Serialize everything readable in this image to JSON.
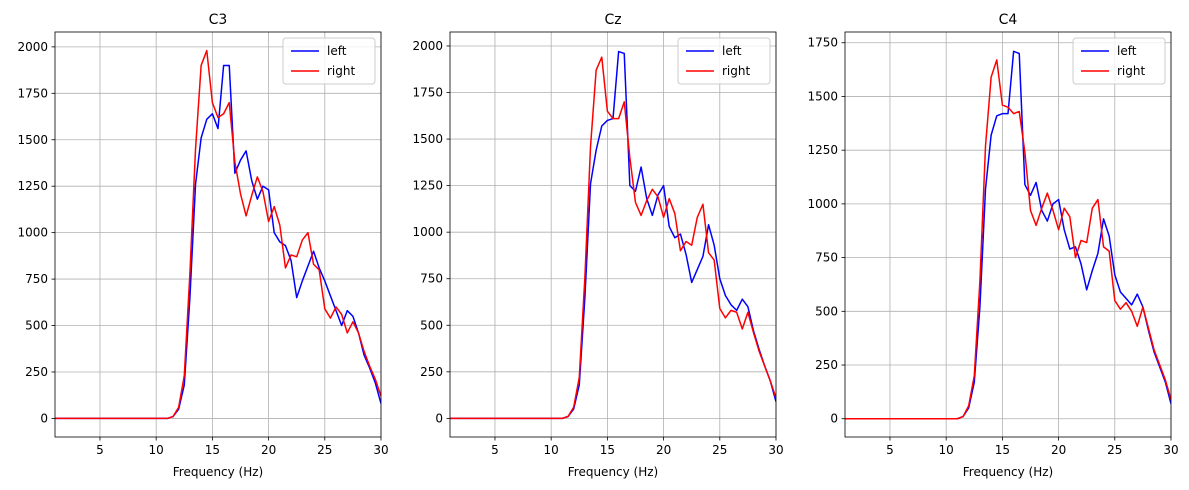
{
  "chart_data": [
    {
      "type": "line",
      "title": "C3",
      "xlabel": "Frequency (Hz)",
      "ylabel": "",
      "xlim": [
        1,
        30
      ],
      "ylim": [
        -100,
        2080
      ],
      "xticks": [
        5,
        10,
        15,
        20,
        25,
        30
      ],
      "yticks": [
        0,
        250,
        500,
        750,
        1000,
        1250,
        1500,
        1750,
        2000
      ],
      "grid": true,
      "legend": "top-right",
      "x": [
        1,
        1.5,
        2,
        2.5,
        3,
        3.5,
        4,
        4.5,
        5,
        5.5,
        6,
        6.5,
        7,
        7.5,
        8,
        8.5,
        9,
        9.5,
        10,
        10.5,
        11,
        11.5,
        12,
        12.5,
        13,
        13.5,
        14,
        14.5,
        15,
        15.5,
        16,
        16.5,
        17,
        17.5,
        18,
        18.5,
        19,
        19.5,
        20,
        20.5,
        21,
        21.5,
        22,
        22.5,
        23,
        23.5,
        24,
        24.5,
        25,
        25.5,
        26,
        26.5,
        27,
        27.5,
        28,
        28.5,
        29,
        29.5,
        30
      ],
      "series": [
        {
          "name": "left",
          "color": "#0000ff",
          "values": [
            0,
            0,
            0,
            0,
            0,
            0,
            0,
            0,
            0,
            0,
            0,
            0,
            0,
            0,
            0,
            0,
            0,
            0,
            0,
            0,
            0,
            10,
            50,
            180,
            650,
            1260,
            1510,
            1610,
            1640,
            1560,
            1900,
            1900,
            1320,
            1390,
            1440,
            1280,
            1180,
            1250,
            1230,
            1000,
            950,
            930,
            850,
            650,
            740,
            820,
            900,
            810,
            740,
            660,
            580,
            500,
            580,
            550,
            460,
            340,
            270,
            190,
            80
          ]
        },
        {
          "name": "right",
          "color": "#ff0000",
          "values": [
            0,
            0,
            0,
            0,
            0,
            0,
            0,
            0,
            0,
            0,
            0,
            0,
            0,
            0,
            0,
            0,
            0,
            0,
            0,
            0,
            0,
            10,
            60,
            230,
            780,
            1450,
            1900,
            1980,
            1700,
            1620,
            1640,
            1700,
            1380,
            1210,
            1090,
            1200,
            1300,
            1220,
            1060,
            1140,
            1040,
            810,
            880,
            870,
            960,
            1000,
            830,
            800,
            590,
            540,
            600,
            560,
            460,
            520,
            460,
            360,
            280,
            210,
            120
          ]
        }
      ]
    },
    {
      "type": "line",
      "title": "Cz",
      "xlabel": "Frequency (Hz)",
      "ylabel": "",
      "xlim": [
        1,
        30
      ],
      "ylim": [
        -100,
        2075
      ],
      "xticks": [
        5,
        10,
        15,
        20,
        25,
        30
      ],
      "yticks": [
        0,
        250,
        500,
        750,
        1000,
        1250,
        1500,
        1750,
        2000
      ],
      "grid": true,
      "legend": "top-right",
      "x": [
        1,
        1.5,
        2,
        2.5,
        3,
        3.5,
        4,
        4.5,
        5,
        5.5,
        6,
        6.5,
        7,
        7.5,
        8,
        8.5,
        9,
        9.5,
        10,
        10.5,
        11,
        11.5,
        12,
        12.5,
        13,
        13.5,
        14,
        14.5,
        15,
        15.5,
        16,
        16.5,
        17,
        17.5,
        18,
        18.5,
        19,
        19.5,
        20,
        20.5,
        21,
        21.5,
        22,
        22.5,
        23,
        23.5,
        24,
        24.5,
        25,
        25.5,
        26,
        26.5,
        27,
        27.5,
        28,
        28.5,
        29,
        29.5,
        30
      ],
      "series": [
        {
          "name": "left",
          "color": "#0000ff",
          "values": [
            0,
            0,
            0,
            0,
            0,
            0,
            0,
            0,
            0,
            0,
            0,
            0,
            0,
            0,
            0,
            0,
            0,
            0,
            0,
            0,
            0,
            10,
            50,
            180,
            650,
            1260,
            1440,
            1570,
            1600,
            1610,
            1970,
            1960,
            1250,
            1220,
            1350,
            1180,
            1090,
            1200,
            1250,
            1030,
            970,
            990,
            880,
            730,
            800,
            870,
            1040,
            930,
            750,
            660,
            610,
            580,
            640,
            600,
            470,
            370,
            280,
            200,
            90
          ]
        },
        {
          "name": "right",
          "color": "#ff0000",
          "values": [
            0,
            0,
            0,
            0,
            0,
            0,
            0,
            0,
            0,
            0,
            0,
            0,
            0,
            0,
            0,
            0,
            0,
            0,
            0,
            0,
            0,
            10,
            60,
            220,
            760,
            1460,
            1870,
            1940,
            1650,
            1610,
            1610,
            1700,
            1400,
            1160,
            1090,
            1170,
            1230,
            1190,
            1080,
            1180,
            1100,
            900,
            950,
            930,
            1080,
            1150,
            890,
            850,
            590,
            540,
            580,
            570,
            480,
            570,
            460,
            360,
            280,
            200,
            110
          ]
        }
      ]
    },
    {
      "type": "line",
      "title": "C4",
      "xlabel": "Frequency (Hz)",
      "ylabel": "",
      "xlim": [
        1,
        30
      ],
      "ylim": [
        -85,
        1800
      ],
      "xticks": [
        5,
        10,
        15,
        20,
        25,
        30
      ],
      "yticks": [
        0,
        250,
        500,
        750,
        1000,
        1250,
        1500,
        1750
      ],
      "grid": true,
      "legend": "top-right",
      "x": [
        1,
        1.5,
        2,
        2.5,
        3,
        3.5,
        4,
        4.5,
        5,
        5.5,
        6,
        6.5,
        7,
        7.5,
        8,
        8.5,
        9,
        9.5,
        10,
        10.5,
        11,
        11.5,
        12,
        12.5,
        13,
        13.5,
        14,
        14.5,
        15,
        15.5,
        16,
        16.5,
        17,
        17.5,
        18,
        18.5,
        19,
        19.5,
        20,
        20.5,
        21,
        21.5,
        22,
        22.5,
        23,
        23.5,
        24,
        24.5,
        25,
        25.5,
        26,
        26.5,
        27,
        27.5,
        28,
        28.5,
        29,
        29.5,
        30
      ],
      "series": [
        {
          "name": "left",
          "color": "#0000ff",
          "values": [
            0,
            0,
            0,
            0,
            0,
            0,
            0,
            0,
            0,
            0,
            0,
            0,
            0,
            0,
            0,
            0,
            0,
            0,
            0,
            0,
            0,
            10,
            50,
            170,
            520,
            1070,
            1320,
            1410,
            1420,
            1420,
            1710,
            1700,
            1090,
            1040,
            1100,
            970,
            920,
            1000,
            1020,
            880,
            790,
            800,
            720,
            600,
            690,
            770,
            930,
            850,
            670,
            590,
            560,
            530,
            580,
            520,
            410,
            310,
            240,
            170,
            70
          ]
        },
        {
          "name": "right",
          "color": "#ff0000",
          "values": [
            0,
            0,
            0,
            0,
            0,
            0,
            0,
            0,
            0,
            0,
            0,
            0,
            0,
            0,
            0,
            0,
            0,
            0,
            0,
            0,
            0,
            10,
            60,
            200,
            640,
            1270,
            1590,
            1670,
            1460,
            1450,
            1420,
            1430,
            1240,
            970,
            900,
            980,
            1050,
            970,
            880,
            980,
            940,
            750,
            830,
            820,
            980,
            1020,
            800,
            780,
            550,
            510,
            540,
            500,
            430,
            520,
            420,
            320,
            250,
            180,
            90
          ]
        }
      ]
    }
  ]
}
